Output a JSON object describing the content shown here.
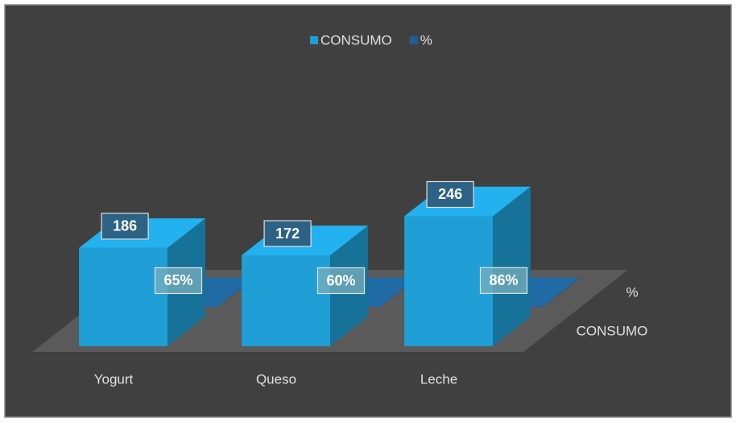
{
  "chart_data": {
    "type": "bar3d",
    "categories": [
      "Yogurt",
      "Queso",
      "Leche"
    ],
    "series": [
      {
        "name": "CONSUMO",
        "color": "#1f9fd5",
        "values": [
          186,
          172,
          246
        ]
      },
      {
        "name": "%",
        "color": "#1d5f93",
        "values": [
          65,
          60,
          86
        ],
        "value_labels": [
          "65%",
          "60%",
          "86%"
        ]
      }
    ],
    "legend": "top"
  }
}
